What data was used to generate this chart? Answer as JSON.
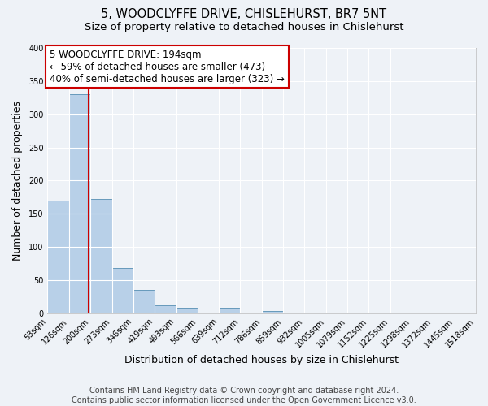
{
  "title": "5, WOODCLYFFE DRIVE, CHISLEHURST, BR7 5NT",
  "subtitle": "Size of property relative to detached houses in Chislehurst",
  "xlabel": "Distribution of detached houses by size in Chislehurst",
  "ylabel": "Number of detached properties",
  "bin_edges": [
    53,
    126,
    200,
    273,
    346,
    419,
    493,
    566,
    639,
    712,
    786,
    859,
    932,
    1005,
    1079,
    1152,
    1225,
    1298,
    1372,
    1445,
    1518
  ],
  "bin_labels": [
    "53sqm",
    "126sqm",
    "200sqm",
    "273sqm",
    "346sqm",
    "419sqm",
    "493sqm",
    "566sqm",
    "639sqm",
    "712sqm",
    "786sqm",
    "859sqm",
    "932sqm",
    "1005sqm",
    "1079sqm",
    "1152sqm",
    "1225sqm",
    "1298sqm",
    "1372sqm",
    "1445sqm",
    "1518sqm"
  ],
  "bar_heights": [
    170,
    330,
    172,
    68,
    35,
    12,
    9,
    0,
    8,
    0,
    4,
    0,
    0,
    0,
    0,
    0,
    0,
    0,
    0,
    0
  ],
  "bar_color": "#b8d0e8",
  "bar_edge_color": "#6699bb",
  "vline_x": 194,
  "vline_color": "#cc0000",
  "ylim": [
    0,
    400
  ],
  "yticks": [
    0,
    50,
    100,
    150,
    200,
    250,
    300,
    350,
    400
  ],
  "annotation_title": "5 WOODCLYFFE DRIVE: 194sqm",
  "annotation_line1": "← 59% of detached houses are smaller (473)",
  "annotation_line2": "40% of semi-detached houses are larger (323) →",
  "annotation_box_color": "#ffffff",
  "annotation_box_edge": "#cc0000",
  "footer1": "Contains HM Land Registry data © Crown copyright and database right 2024.",
  "footer2": "Contains public sector information licensed under the Open Government Licence v3.0.",
  "background_color": "#eef2f7",
  "grid_color": "#ffffff",
  "title_fontsize": 10.5,
  "subtitle_fontsize": 9.5,
  "axis_label_fontsize": 9,
  "tick_fontsize": 7,
  "footer_fontsize": 7,
  "ann_fontsize": 8.5
}
